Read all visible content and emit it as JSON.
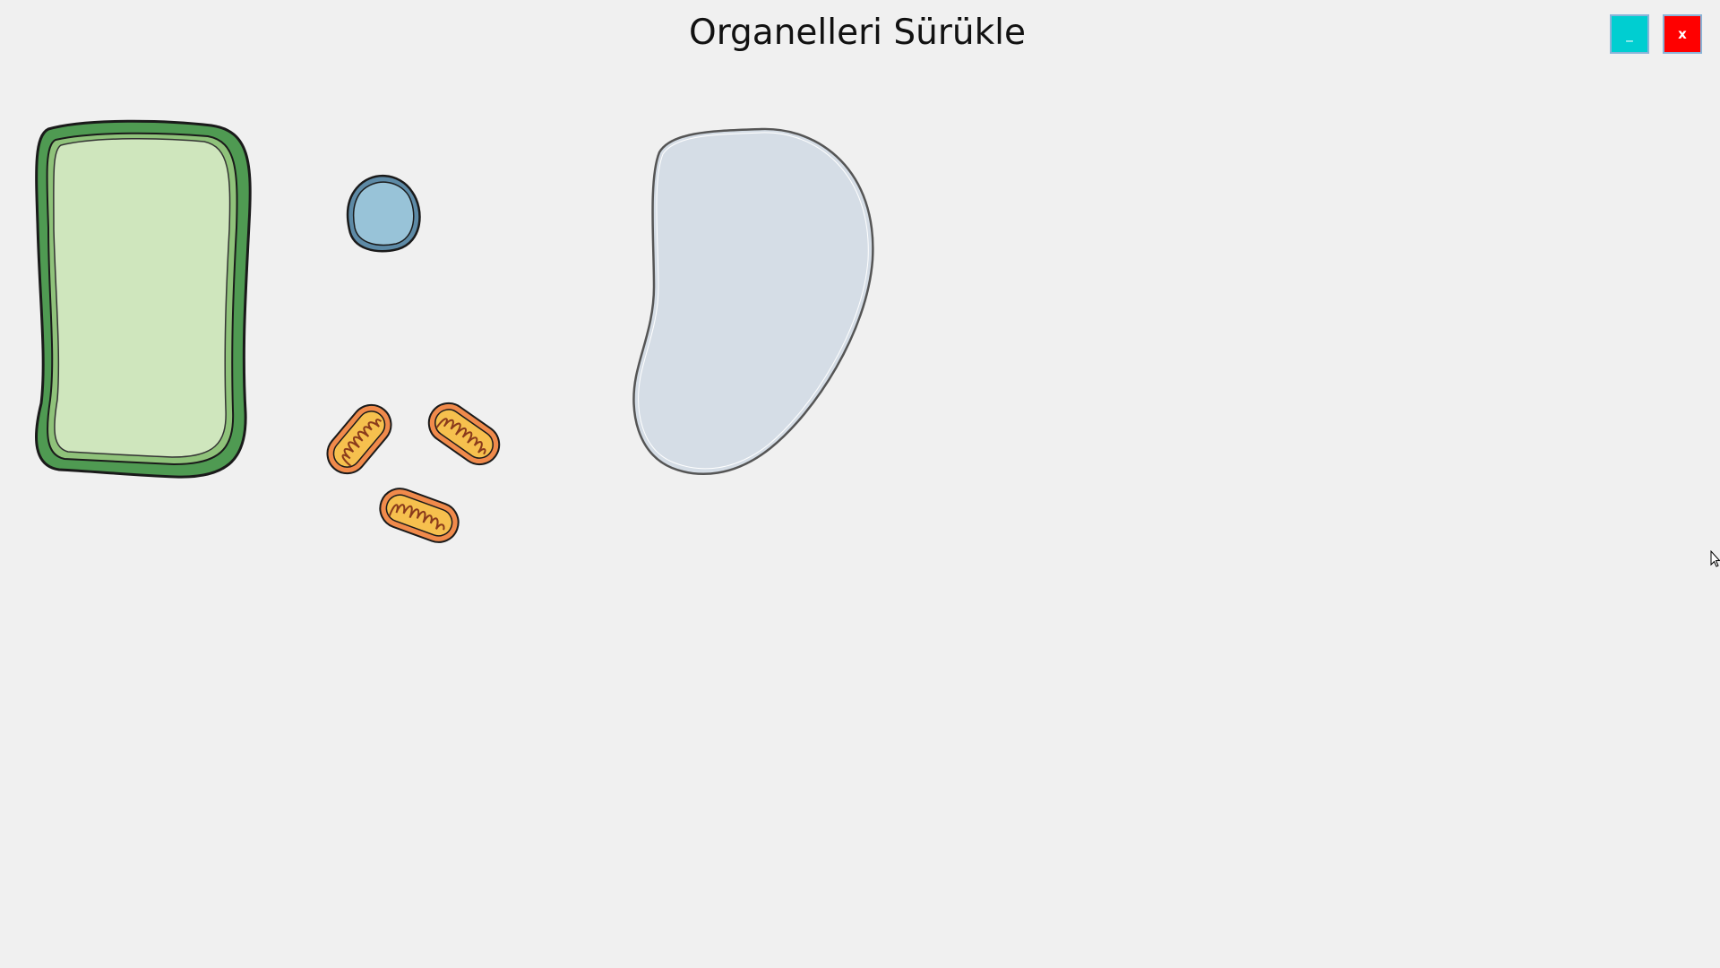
{
  "window": {
    "title": "Organelleri Sürükle",
    "minimize_label": "_",
    "close_label": "x"
  },
  "colors": {
    "background": "#f0f0f0",
    "minimize_button": "#00ced1",
    "close_button": "#ff0000",
    "cell_wall": "#4f9a52",
    "cytoplasm": "#cfe6bd",
    "nucleus": "#98c3d8",
    "mitochondria_outer": "#f08a4b",
    "mitochondria_inner": "#f6c04e",
    "vacuole": "#d5dde6"
  },
  "organelles": [
    {
      "id": "plant-cell-wall",
      "icon": "plant-cell-wall-icon"
    },
    {
      "id": "nucleus",
      "icon": "nucleus-icon"
    },
    {
      "id": "mitochondrion",
      "icon": "mitochondrion-icon"
    },
    {
      "id": "mitochondrion",
      "icon": "mitochondrion-icon"
    },
    {
      "id": "mitochondrion",
      "icon": "mitochondrion-icon"
    },
    {
      "id": "vacuole",
      "icon": "vacuole-icon"
    }
  ]
}
